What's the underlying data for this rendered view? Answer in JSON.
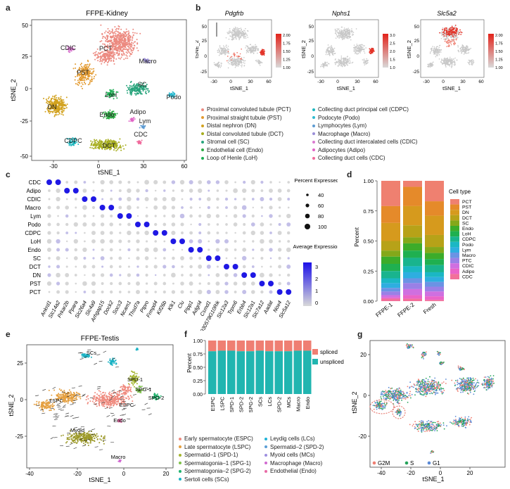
{
  "panels": {
    "a": {
      "label": "a",
      "title": "FFPE-Kidney",
      "xlabel": "tSNE_1",
      "ylabel": "tSNE_2",
      "xticks": [
        "-30",
        "0",
        "30",
        "60"
      ],
      "yticks": [
        "50",
        "25",
        "0",
        "-25",
        "-50"
      ],
      "clusters": [
        {
          "name": "CDIC",
          "color": "#d97bd0"
        },
        {
          "name": "PCT",
          "color": "#ec8a80"
        },
        {
          "name": "Macro",
          "color": "#9b8fd8"
        },
        {
          "name": "PST",
          "color": "#e39a2f"
        },
        {
          "name": "SC",
          "color": "#28a47c"
        },
        {
          "name": "Podo",
          "color": "#2dbad0"
        },
        {
          "name": "LoH",
          "color": "#1fae55"
        },
        {
          "name": "DN",
          "color": "#d2a21f"
        },
        {
          "name": "Endo",
          "color": "#2eab45"
        },
        {
          "name": "Adipo",
          "color": "#e064c6"
        },
        {
          "name": "Lym",
          "color": "#5d9bd2"
        },
        {
          "name": "CDC",
          "color": "#f06a9c"
        },
        {
          "name": "CDPC",
          "color": "#1fb7bf"
        },
        {
          "name": "DCT",
          "color": "#a6ad1d"
        }
      ]
    },
    "b": {
      "label": "b",
      "genes": [
        {
          "name": "Pdgfrb",
          "scale": [
            "2.00",
            "1.75",
            "1.50",
            "1.25",
            "1.00"
          ]
        },
        {
          "name": "Nphs1",
          "scale": [
            "3.0",
            "2.5",
            "2.0",
            "1.5",
            "1.0"
          ]
        },
        {
          "name": "Slc5a2",
          "scale": [
            "2.00",
            "1.75",
            "1.50",
            "1.25",
            "1.00"
          ]
        }
      ],
      "xlabel": "tSNE_1",
      "ylabel": "tSNE_2",
      "xticks": [
        "-30",
        "0",
        "30",
        "60"
      ],
      "yticks": [
        "50",
        "25",
        "0",
        "-25"
      ]
    },
    "kidney_legend": [
      {
        "text": "Proximal convoluted tubule (PCT)",
        "color": "#ec8a80"
      },
      {
        "text": "Proximal straight tubule (PST)",
        "color": "#e39a2f"
      },
      {
        "text": "Distal nephron (DN)",
        "color": "#d2a21f"
      },
      {
        "text": "Distal convoluted tubule (DCT)",
        "color": "#a6ad1d"
      },
      {
        "text": "Stromal cell (SC)",
        "color": "#28a47c"
      },
      {
        "text": "Endothelial cell (Endo)",
        "color": "#2eab45"
      },
      {
        "text": "Loop of Henle (LoH)",
        "color": "#1fae55"
      },
      {
        "text": "Collecting duct principal cell (CDPC)",
        "color": "#1fb7bf"
      },
      {
        "text": "Podocyte (Podo)",
        "color": "#2dbad0"
      },
      {
        "text": "Lymphocytes (Lym)",
        "color": "#5d9bd2"
      },
      {
        "text": "Macrophage (Macro)",
        "color": "#9b8fd8"
      },
      {
        "text": "Collecting duct intercalated cells (CDIC)",
        "color": "#d97bd0"
      },
      {
        "text": "Adipocytes (Adipo)",
        "color": "#e064c6"
      },
      {
        "text": "Collecting duct cells (CDC)",
        "color": "#f06a9c"
      }
    ],
    "c": {
      "label": "c",
      "rows": [
        "CDC",
        "Adipo",
        "CDIC",
        "Macro",
        "Lym",
        "Podo",
        "CDPC",
        "LoH",
        "Endo",
        "SC",
        "DCT",
        "DN",
        "PST",
        "PCT"
      ],
      "genes": [
        "Ankrd1",
        "Slc14a2",
        "Prkar2b",
        "Ppara",
        "Slc26a4",
        "Slc4a9",
        "Arhgap15",
        "Dock2",
        "Socs3",
        "Ncam1",
        "Thsd7a",
        "Ptpro",
        "Frmpd4",
        "Kif26b",
        "Klk1",
        "Clu",
        "Plpp1",
        "Adgrl4",
        "Csmd1",
        "4930578G10Rik",
        "Slc12a3",
        "Trpm6",
        "Erbb4",
        "Slc12a1",
        "Slc7a12",
        "Aadat",
        "Nox4",
        "Slc5a12"
      ],
      "legend_pct_title": "Percent Expressed",
      "legend_pct_values": [
        "40",
        "60",
        "80",
        "100"
      ],
      "legend_avg_title": "Average Expression",
      "legend_avg_ticks": [
        "3",
        "2",
        "1",
        "0"
      ]
    },
    "d": {
      "label": "d",
      "legend_title": "Cell type",
      "ylabel": "Percent",
      "yticks": [
        "1.00",
        "0.75",
        "0.50",
        "0.25",
        "0.00"
      ]
    },
    "e": {
      "label": "e",
      "title": "FFPE-Testis",
      "xlabel": "tSNE_1",
      "ylabel": "tSNE_2",
      "xticks": [
        "-40",
        "-20",
        "0",
        "20"
      ],
      "yticks": [
        "25",
        "0",
        "-25"
      ],
      "clusters": [
        {
          "name": "LSPC",
          "color": "#e5a040"
        },
        {
          "name": "ESPC",
          "color": "#ef8a7e"
        },
        {
          "name": "SPD-1",
          "color": "#a4b52e"
        },
        {
          "name": "SPG-1",
          "color": "#7ec24a"
        },
        {
          "name": "SPG-2",
          "color": "#20b36d"
        },
        {
          "name": "SCs",
          "color": "#1cb3c4"
        },
        {
          "name": "Endo",
          "color": "#e86aa6"
        },
        {
          "name": "Myoid",
          "color": "#9d9a2a"
        },
        {
          "name": "Macro",
          "color": "#d06ad0"
        }
      ]
    },
    "testis_legend": [
      {
        "text": "Early spermatocyte (ESPC)",
        "color": "#ef8a7e"
      },
      {
        "text": "Late spermatocyte (LSPC)",
        "color": "#e5a040"
      },
      {
        "text": "Spermatid–1 (SPD-1)",
        "color": "#a4b52e"
      },
      {
        "text": "Spermatogonia–1 (SPG-1)",
        "color": "#7ec24a"
      },
      {
        "text": "Spermatogonia–2 (SPG-2)",
        "color": "#20b36d"
      },
      {
        "text": "Sertoli cells (SCs)",
        "color": "#1cb3c4"
      },
      {
        "text": "Leydig cells (LCs)",
        "color": "#1fb3d8"
      },
      {
        "text": "Spermatid–2 (SPD-2)",
        "color": "#5b9ed6"
      },
      {
        "text": "Myoid cells (MCs)",
        "color": "#9d8fe0"
      },
      {
        "text": "Macrophage (Macro)",
        "color": "#d06ad0"
      },
      {
        "text": "Endothelial (Endo)",
        "color": "#e86aa6"
      }
    ],
    "f": {
      "label": "f",
      "ylabel": "Percent",
      "yticks": [
        "1.00",
        "0.75",
        "0.50",
        "0.25",
        "0.00"
      ],
      "legend": [
        {
          "name": "spliced",
          "color": "#ef7f73"
        },
        {
          "name": "unspliced",
          "color": "#21b5b0"
        }
      ]
    },
    "g": {
      "label": "g",
      "xlabel": "tSNE_1",
      "ylabel": "tSNE_2",
      "xticks": [
        "-40",
        "-20",
        "0",
        "20"
      ],
      "yticks": [
        "20",
        "0",
        "-20"
      ],
      "legend": [
        {
          "name": "G2M",
          "color": "#ef7f73"
        },
        {
          "name": "S",
          "color": "#24a35a"
        },
        {
          "name": "G1",
          "color": "#5b8ad6"
        }
      ]
    }
  },
  "chart_data": [
    {
      "type": "bar",
      "panel": "d",
      "stacked": true,
      "categories": [
        "FFPE-1",
        "FFPE-2",
        "Fresh"
      ],
      "series": [
        {
          "name": "PCT",
          "color": "#ef8070",
          "values": [
            0.21,
            0.05,
            0.17
          ]
        },
        {
          "name": "PST",
          "color": "#e58a2a",
          "values": [
            0.14,
            0.16,
            0.12
          ]
        },
        {
          "name": "DN",
          "color": "#d69a1d",
          "values": [
            0.15,
            0.16,
            0.16
          ]
        },
        {
          "name": "DCT",
          "color": "#b7a218",
          "values": [
            0.08,
            0.1,
            0.1
          ]
        },
        {
          "name": "SC",
          "color": "#84a81a",
          "values": [
            0.05,
            0.05,
            0.05
          ]
        },
        {
          "name": "Endo",
          "color": "#3cac2a",
          "values": [
            0.06,
            0.06,
            0.05
          ]
        },
        {
          "name": "LoH",
          "color": "#1fb050",
          "values": [
            0.06,
            0.06,
            0.05
          ]
        },
        {
          "name": "CDPC",
          "color": "#19b48e",
          "values": [
            0.06,
            0.07,
            0.06
          ]
        },
        {
          "name": "Podo",
          "color": "#1bb7c4",
          "values": [
            0.04,
            0.05,
            0.04
          ]
        },
        {
          "name": "Lym",
          "color": "#2eaee0",
          "values": [
            0.04,
            0.05,
            0.04
          ]
        },
        {
          "name": "Macro",
          "color": "#6b93e4",
          "values": [
            0.03,
            0.04,
            0.04
          ]
        },
        {
          "name": "PTC",
          "color": "#9a80e6",
          "values": [
            0.03,
            0.05,
            0.04
          ]
        },
        {
          "name": "CDIC",
          "color": "#cf6fe0",
          "values": [
            0.02,
            0.05,
            0.04
          ]
        },
        {
          "name": "Adipo",
          "color": "#ea64c8",
          "values": [
            0.01,
            0.03,
            0.03
          ]
        },
        {
          "name": "CDC",
          "color": "#f2709a",
          "values": [
            0.02,
            0.02,
            0.01
          ]
        }
      ],
      "ylabel": "Percent",
      "ylim": [
        0,
        1
      ]
    },
    {
      "type": "bar",
      "panel": "f",
      "stacked": true,
      "categories": [
        "ESPC",
        "LSPC",
        "SPD-1",
        "SPD-2",
        "SPG-2",
        "SCs",
        "LCs",
        "SPD-2",
        "MCs",
        "Macro",
        "Endo"
      ],
      "series": [
        {
          "name": "unspliced",
          "color": "#21b5b0",
          "values": [
            0.8,
            0.81,
            0.81,
            0.8,
            0.8,
            0.81,
            0.8,
            0.8,
            0.8,
            0.81,
            0.81
          ]
        },
        {
          "name": "spliced",
          "color": "#ef7f73",
          "values": [
            0.2,
            0.19,
            0.19,
            0.2,
            0.2,
            0.19,
            0.2,
            0.2,
            0.2,
            0.19,
            0.19
          ]
        }
      ],
      "ylabel": "Percent",
      "ylim": [
        0,
        1
      ]
    }
  ]
}
